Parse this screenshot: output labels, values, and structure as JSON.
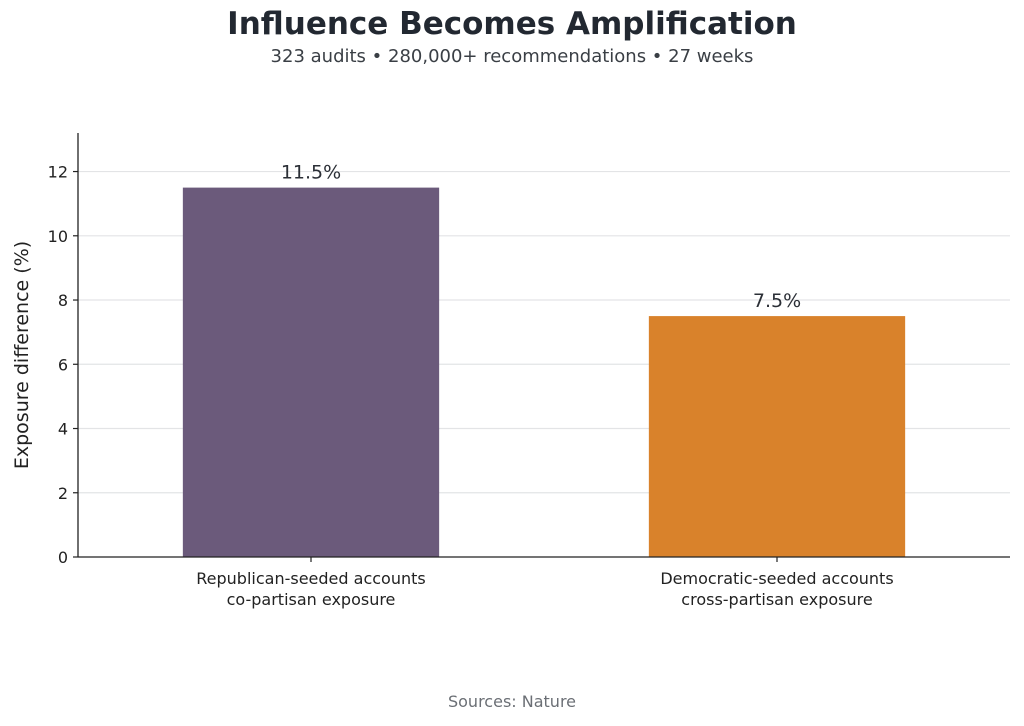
{
  "title": "Influence Becomes Amplification",
  "subtitle": "323 audits • 280,000+ recommendations • 27 weeks",
  "source": "Sources: Nature",
  "colors": {
    "republican": "#6b5a7b",
    "democratic": "#d9822b"
  },
  "chart_data": {
    "type": "bar",
    "categories": [
      [
        "Republican-seeded accounts",
        "co-partisan exposure"
      ],
      [
        "Democratic-seeded accounts",
        "cross-partisan exposure"
      ]
    ],
    "values": [
      11.5,
      7.5
    ],
    "data_labels": [
      "11.5%",
      "7.5%"
    ],
    "ylabel": "Exposure difference (%)",
    "ylim": [
      0,
      13.2
    ],
    "yticks": [
      0,
      2,
      4,
      6,
      8,
      10,
      12
    ],
    "grid": true,
    "legend": "none"
  }
}
